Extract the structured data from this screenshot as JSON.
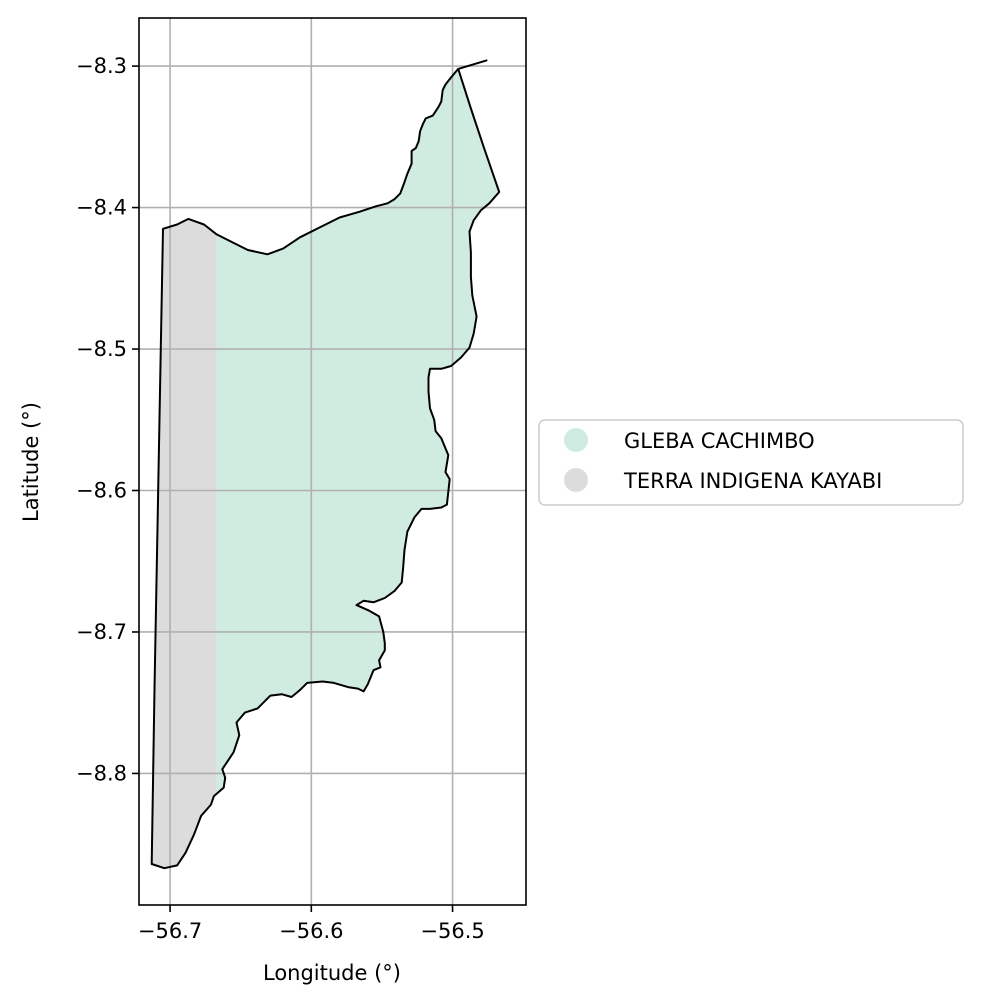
{
  "chart_data": {
    "type": "map",
    "title": "",
    "xlabel": "Longitude (°)",
    "ylabel": "Latitude (°)",
    "xlim": [
      -56.722,
      -56.448
    ],
    "ylim": [
      -8.893,
      -8.266
    ],
    "xticks": [
      -56.7,
      -56.6,
      -56.5
    ],
    "xtick_labels": [
      "−56.7",
      "−56.6",
      "−56.5"
    ],
    "yticks": [
      -8.3,
      -8.4,
      -8.5,
      -8.6,
      -8.7,
      -8.8
    ],
    "ytick_labels": [
      "−8.3",
      "−8.4",
      "−8.5",
      "−8.6",
      "−8.7",
      "−8.8"
    ],
    "grid": true,
    "legend_position": "center-right outside",
    "categories": [
      {
        "name": "GLEBA CACHIMBO",
        "color": "#d0ebe0"
      },
      {
        "name": "TERRA INDIGENA KAYABI",
        "color": "#dcdcdc"
      }
    ],
    "boundary_color": "#000000",
    "category_split_longitude": -56.667,
    "outline": [
      [
        -56.476,
        -8.296
      ],
      [
        -56.496,
        -8.302
      ],
      [
        -56.501,
        -8.308
      ],
      [
        -56.505,
        -8.313
      ],
      [
        -56.507,
        -8.317
      ],
      [
        -56.508,
        -8.325
      ],
      [
        -56.51,
        -8.329
      ],
      [
        -56.514,
        -8.335
      ],
      [
        -56.519,
        -8.337
      ],
      [
        -56.521,
        -8.341
      ],
      [
        -56.523,
        -8.346
      ],
      [
        -56.524,
        -8.353
      ],
      [
        -56.526,
        -8.358
      ],
      [
        -56.529,
        -8.36
      ],
      [
        -56.529,
        -8.369
      ],
      [
        -56.532,
        -8.376
      ],
      [
        -56.534,
        -8.382
      ],
      [
        -56.537,
        -8.39
      ],
      [
        -56.541,
        -8.394
      ],
      [
        -56.546,
        -8.397
      ],
      [
        -56.554,
        -8.399
      ],
      [
        -56.566,
        -8.403
      ],
      [
        -56.58,
        -8.407
      ],
      [
        -56.594,
        -8.414
      ],
      [
        -56.608,
        -8.421
      ],
      [
        -56.62,
        -8.429
      ],
      [
        -56.631,
        -8.433
      ],
      [
        -56.645,
        -8.43
      ],
      [
        -56.657,
        -8.424
      ],
      [
        -56.667,
        -8.419
      ],
      [
        -56.676,
        -8.412
      ],
      [
        -56.687,
        -8.408
      ],
      [
        -56.695,
        -8.412
      ],
      [
        -56.705,
        -8.415
      ],
      [
        -56.707,
        -8.522
      ],
      [
        -56.709,
        -8.63
      ],
      [
        -56.711,
        -8.74
      ],
      [
        -56.713,
        -8.864
      ],
      [
        -56.704,
        -8.867
      ],
      [
        -56.695,
        -8.865
      ],
      [
        -56.689,
        -8.856
      ],
      [
        -56.683,
        -8.843
      ],
      [
        -56.678,
        -8.83
      ],
      [
        -56.671,
        -8.822
      ],
      [
        -56.669,
        -8.816
      ],
      [
        -56.662,
        -8.81
      ],
      [
        -56.661,
        -8.803
      ],
      [
        -56.663,
        -8.797
      ],
      [
        -56.655,
        -8.785
      ],
      [
        -56.651,
        -8.773
      ],
      [
        -56.653,
        -8.764
      ],
      [
        -56.647,
        -8.757
      ],
      [
        -56.638,
        -8.754
      ],
      [
        -56.629,
        -8.745
      ],
      [
        -56.621,
        -8.744
      ],
      [
        -56.614,
        -8.746
      ],
      [
        -56.608,
        -8.741
      ],
      [
        -56.603,
        -8.736
      ],
      [
        -56.592,
        -8.735
      ],
      [
        -56.584,
        -8.736
      ],
      [
        -56.574,
        -8.739
      ],
      [
        -56.567,
        -8.74
      ],
      [
        -56.563,
        -8.742
      ],
      [
        -56.56,
        -8.737
      ],
      [
        -56.556,
        -8.727
      ],
      [
        -56.551,
        -8.725
      ],
      [
        -56.552,
        -8.72
      ],
      [
        -56.548,
        -8.713
      ],
      [
        -56.548,
        -8.708
      ],
      [
        -56.549,
        -8.7
      ],
      [
        -56.552,
        -8.689
      ],
      [
        -56.559,
        -8.685
      ],
      [
        -56.568,
        -8.681
      ],
      [
        -56.563,
        -8.678
      ],
      [
        -56.556,
        -8.679
      ],
      [
        -56.548,
        -8.676
      ],
      [
        -56.541,
        -8.671
      ],
      [
        -56.536,
        -8.665
      ],
      [
        -56.535,
        -8.655
      ],
      [
        -56.534,
        -8.642
      ],
      [
        -56.532,
        -8.629
      ],
      [
        -56.527,
        -8.619
      ],
      [
        -56.522,
        -8.613
      ],
      [
        -56.516,
        -8.613
      ],
      [
        -56.508,
        -8.612
      ],
      [
        -56.504,
        -8.61
      ],
      [
        -56.503,
        -8.601
      ],
      [
        -56.502,
        -8.592
      ],
      [
        -56.505,
        -8.587
      ],
      [
        -56.503,
        -8.575
      ],
      [
        -56.508,
        -8.563
      ],
      [
        -56.512,
        -8.558
      ],
      [
        -56.513,
        -8.55
      ],
      [
        -56.516,
        -8.542
      ],
      [
        -56.517,
        -8.53
      ],
      [
        -56.517,
        -8.52
      ],
      [
        -56.516,
        -8.514
      ],
      [
        -56.508,
        -8.514
      ],
      [
        -56.501,
        -8.512
      ],
      [
        -56.494,
        -8.506
      ],
      [
        -56.488,
        -8.499
      ],
      [
        -56.485,
        -8.489
      ],
      [
        -56.483,
        -8.477
      ],
      [
        -56.486,
        -8.462
      ],
      [
        -56.487,
        -8.449
      ],
      [
        -56.487,
        -8.432
      ],
      [
        -56.488,
        -8.417
      ],
      [
        -56.485,
        -8.409
      ],
      [
        -56.48,
        -8.402
      ],
      [
        -56.474,
        -8.397
      ],
      [
        -56.467,
        -8.389
      ],
      [
        -56.478,
        -8.357
      ],
      [
        -56.487,
        -8.33
      ],
      [
        -56.495,
        -8.305
      ],
      [
        -56.496,
        -8.302
      ]
    ]
  }
}
